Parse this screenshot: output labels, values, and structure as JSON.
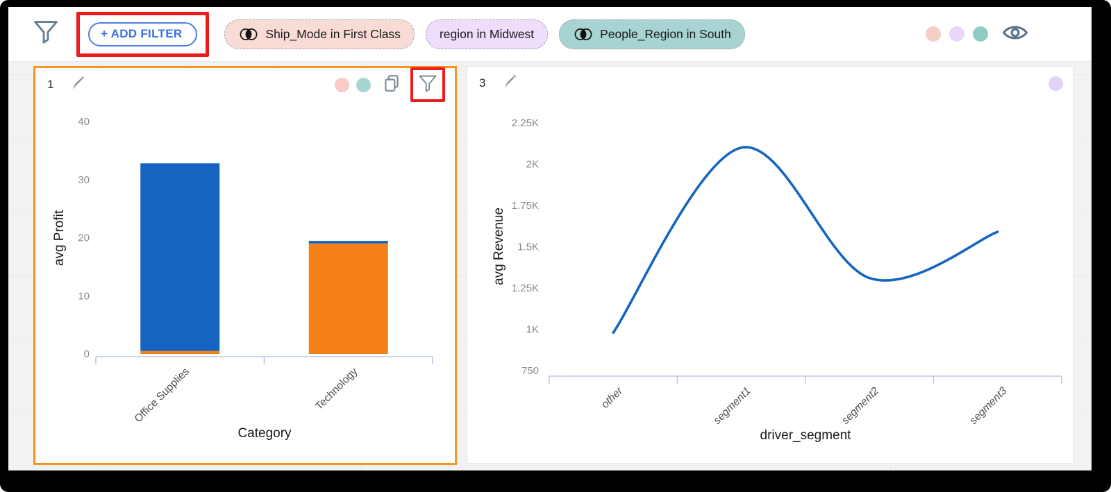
{
  "toolbar": {
    "add_filter_label": "+ ADD FILTER",
    "chips": [
      {
        "label": "Ship_Mode in First Class",
        "has_intersect_icon": true,
        "bg": "#f9dbd6"
      },
      {
        "label": "region in Midwest",
        "has_intersect_icon": false,
        "bg": "#eeddfb"
      },
      {
        "label": "People_Region in South",
        "has_intersect_icon": true,
        "bg": "#a7d4d0"
      }
    ],
    "legend_dots": [
      "#f7cdc7",
      "#e9d7f9",
      "#8eccc5"
    ]
  },
  "cards": [
    {
      "id": "1",
      "badge_dots": [
        "#f8cbc6",
        "#a5d6d2"
      ],
      "has_copy_icon": true,
      "has_filter_icon": true,
      "filter_icon_highlighted": true,
      "border_color": "#f7941e"
    },
    {
      "id": "3",
      "badge_dots": [
        "#e5d0f6"
      ],
      "has_copy_icon": false,
      "has_filter_icon": false
    }
  ],
  "annotations": {
    "highlight_color": "#ea1c1c",
    "highlighted_elements": [
      "add-filter-button",
      "card-1-filter-icon"
    ]
  },
  "chart_data": [
    {
      "type": "bar",
      "stacked": true,
      "categories": [
        "Office Supplies",
        "Technology"
      ],
      "series": [
        {
          "name": "orange-segment",
          "color": "#F5801A",
          "values": [
            0.5,
            19.0
          ]
        },
        {
          "name": "blue-segment",
          "color": "#1565C0",
          "values": [
            32.3,
            0.45
          ]
        }
      ],
      "xlabel": "Category",
      "ylabel": "avg Profit",
      "yticks": [
        0,
        10,
        20,
        30,
        40
      ],
      "ylim": [
        0,
        43.5
      ],
      "grid": false,
      "legend": false,
      "axis_color": "#bcc8e4"
    },
    {
      "type": "line",
      "smooth": true,
      "x": [
        "other",
        "segment1",
        "segment2",
        "segment3"
      ],
      "values": [
        980,
        2100,
        1310,
        1590
      ],
      "xlabel": "driver_segment",
      "ylabel": "avg Revenue",
      "ytick_labels": [
        "750",
        "1K",
        "1.25K",
        "1.5K",
        "1.75K",
        "2K",
        "2.25K"
      ],
      "ytick_values": [
        750,
        1000,
        1250,
        1500,
        1750,
        2000,
        2250
      ],
      "ylim": [
        750,
        2350
      ],
      "color": "#1565C0",
      "grid": false,
      "legend": false,
      "axis_color": "#bcc8e4"
    }
  ]
}
